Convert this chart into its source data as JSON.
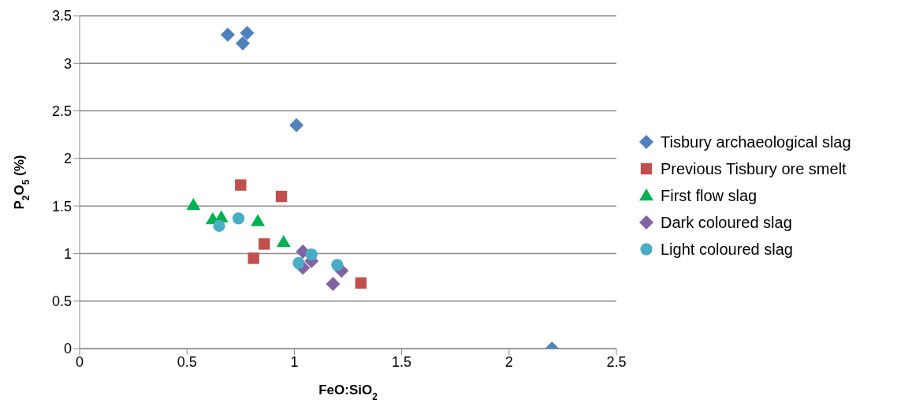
{
  "chart_data": {
    "type": "scatter",
    "xlabel": "FeO:SiO$_{2}$",
    "ylabel": "P$_{2}$O$_{5}$ (%)",
    "xlim": [
      0,
      2.5
    ],
    "xticks": [
      0,
      0.5,
      1,
      1.5,
      2,
      2.5
    ],
    "ylim": [
      0,
      3.5
    ],
    "yticks": [
      0,
      0.5,
      1,
      1.5,
      2,
      2.5,
      3,
      3.5
    ],
    "grid": "y",
    "legend": "right",
    "series": [
      {
        "name": "Tisbury archaeological slag",
        "color": "#4f81bd",
        "marker": "diamond",
        "x": [
          0.69,
          0.78,
          0.76,
          1.01,
          2.2
        ],
        "values": [
          3.3,
          3.32,
          3.21,
          2.35,
          0
        ]
      },
      {
        "name": "Previous Tisbury ore smelt",
        "color": "#c0504d",
        "marker": "square",
        "x": [
          0.75,
          0.94,
          0.86,
          0.81,
          1.31
        ],
        "values": [
          1.72,
          1.6,
          1.1,
          0.95,
          0.69
        ]
      },
      {
        "name": "First flow slag",
        "color": "#00b050",
        "marker": "triangle",
        "x": [
          0.53,
          0.62,
          0.66,
          0.83,
          0.95
        ],
        "values": [
          1.51,
          1.36,
          1.38,
          1.34,
          1.12
        ]
      },
      {
        "name": "Dark coloured slag",
        "color": "#8064a2",
        "marker": "diamond",
        "x": [
          1.04,
          1.04,
          1.08,
          1.18,
          1.22
        ],
        "values": [
          1.02,
          0.85,
          0.92,
          0.68,
          0.82
        ]
      },
      {
        "name": "Light coloured slag",
        "color": "#4bacc6",
        "marker": "circle",
        "x": [
          0.65,
          0.74,
          1.02,
          1.08,
          1.2
        ],
        "values": [
          1.29,
          1.37,
          0.9,
          0.99,
          0.88
        ]
      }
    ]
  }
}
